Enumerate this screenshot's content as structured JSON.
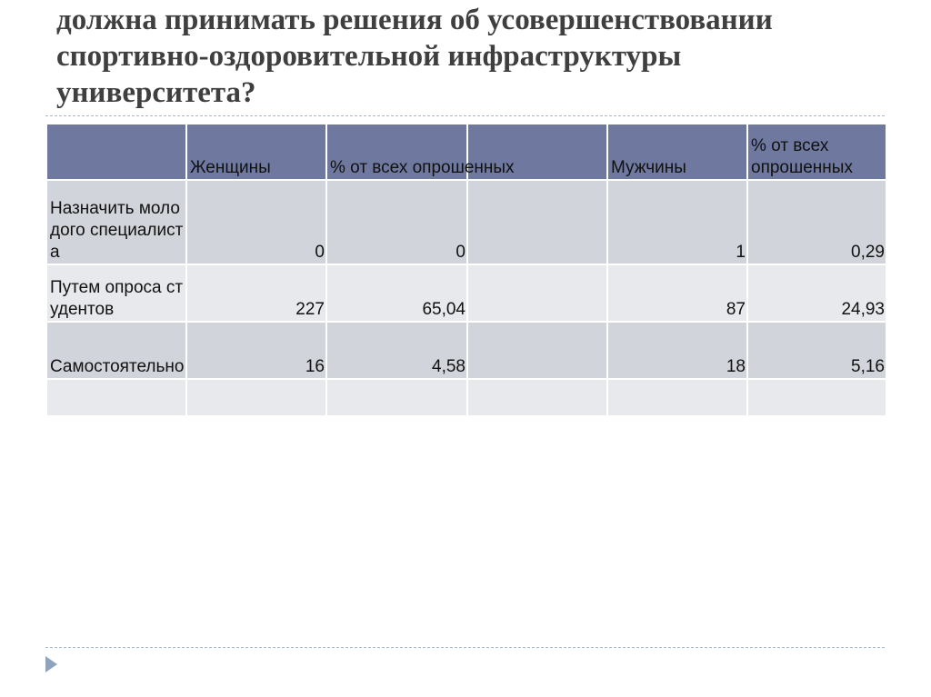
{
  "title": {
    "lines": [
      "должна принимать решения об усовершенствовании",
      "спортивно-оздоровительной инфраструктуры",
      "университета?"
    ]
  },
  "table": {
    "header": [
      "Женщины",
      "% от всех опрошенных",
      "Мужчины",
      "% от всех опрошенных"
    ],
    "rows": [
      [
        "Назначить молодого специалиста",
        "0",
        "0",
        "1",
        "0,29"
      ],
      [
        "Путем опроса студентов",
        "227",
        "65,04",
        "87",
        "24,93"
      ],
      [
        "Самостоятельно",
        "16",
        "4,58",
        "18",
        "5,16"
      ]
    ]
  }
}
